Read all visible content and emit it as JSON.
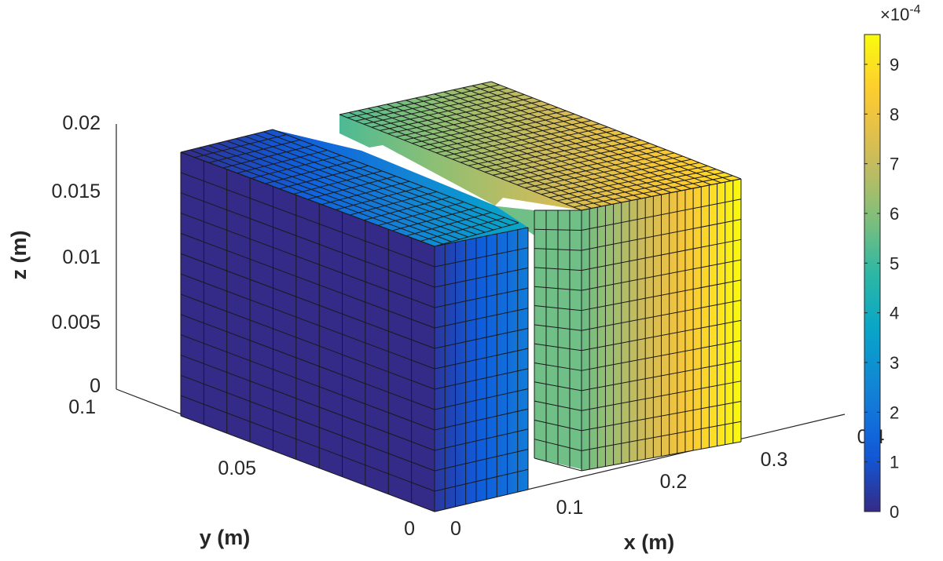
{
  "chart_data": {
    "type": "surface-3d",
    "title": "",
    "xlabel": "x (m)",
    "ylabel": "y (m)",
    "zlabel": "z (m)",
    "xlim": [
      0,
      0.4
    ],
    "ylim": [
      0,
      0.1
    ],
    "zlim": [
      0,
      0.02
    ],
    "x_ticks": [
      "0",
      "0.1",
      "0.2",
      "0.3",
      "0.4"
    ],
    "y_ticks": [
      "0",
      "0.05",
      "0.1"
    ],
    "z_ticks": [
      "0",
      "0.005",
      "0.01",
      "0.015",
      "0.02"
    ],
    "colorbar": {
      "colormap": "parula",
      "min": 0,
      "max": 9.6,
      "exponent_label": "×10",
      "exponent_power": "-4",
      "ticks": [
        "0",
        "1",
        "2",
        "3",
        "4",
        "5",
        "6",
        "7",
        "8",
        "9"
      ],
      "colors": [
        "#352a87",
        "#0f5cdd",
        "#1481d6",
        "#06a4ca",
        "#2eb7a4",
        "#87bf77",
        "#d1bb59",
        "#fec832",
        "#f9fb0e"
      ]
    },
    "field_range_left_block": [
      0,
      2.2
    ],
    "field_range_right_block": [
      5.0,
      9.6
    ],
    "grid": false
  }
}
